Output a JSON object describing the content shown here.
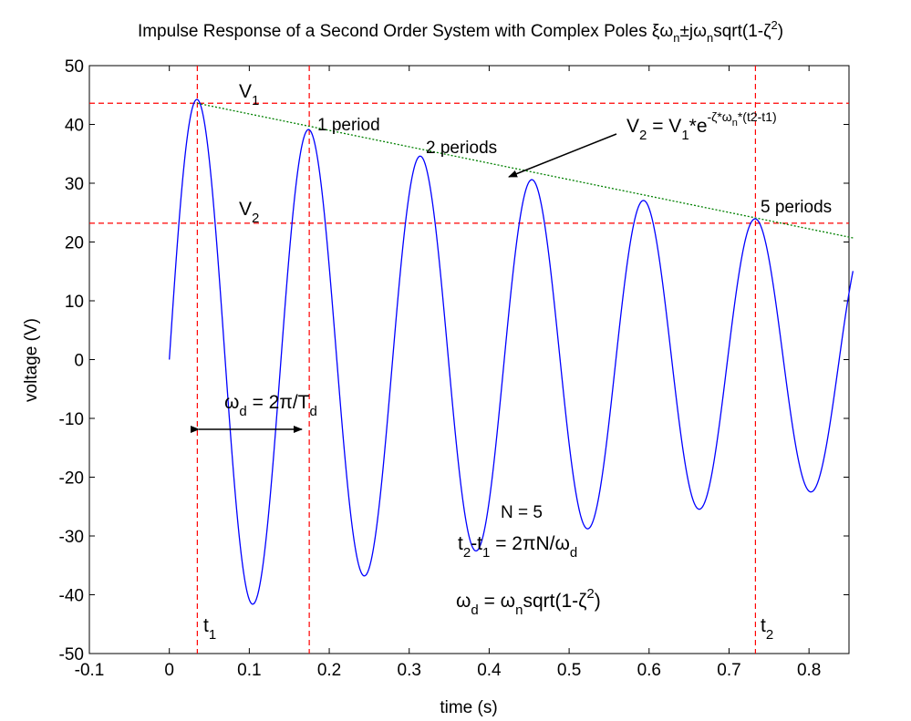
{
  "chart_data": {
    "type": "line",
    "title": {
      "prefix": "Impulse Response of a Second Order System with Complex Poles ",
      "xi": "ξω",
      "n1": "n",
      "pm": "±jω",
      "n2": "n",
      "mid": "sqrt(1-ζ",
      "sup": "2",
      "end": ")"
    },
    "xlabel": "time (s)",
    "ylabel": "voltage (V)",
    "xlim": [
      -0.1,
      0.85
    ],
    "ylim": [
      -50,
      50
    ],
    "xticks": [
      -0.1,
      0,
      0.1,
      0.2,
      0.3,
      0.4,
      0.5,
      0.6,
      0.7,
      0.8
    ],
    "xtick_labels": [
      "-0.1",
      "0",
      "0.1",
      "0.2",
      "0.3",
      "0.4",
      "0.5",
      "0.6",
      "0.7",
      "0.8"
    ],
    "yticks": [
      -50,
      -40,
      -30,
      -20,
      -10,
      0,
      10,
      20,
      30,
      40,
      50
    ],
    "ytick_labels": [
      "-50",
      "-40",
      "-30",
      "-20",
      "-10",
      "0",
      "10",
      "20",
      "30",
      "40",
      "50"
    ],
    "grid": false,
    "series": [
      {
        "color": "#0000ff",
        "model": {
          "amplitude": 45.61,
          "decay": 0.8798,
          "omega_d": 45.0,
          "t_start": 0,
          "t_end": 0.855
        }
      }
    ],
    "envelope": {
      "color": "#008000",
      "style": "dotted",
      "points": [
        [
          0.035,
          43.6
        ],
        [
          0.855,
          20.7
        ]
      ]
    },
    "reference_lines": {
      "color": "#ff0000",
      "style": "dashed",
      "horizontal": [
        43.6,
        23.2
      ],
      "vertical": [
        0.035,
        0.175,
        0.733
      ]
    },
    "annotations": {
      "V1": {
        "main": "V",
        "sub": "1"
      },
      "V2": {
        "main": "V",
        "sub": "2"
      },
      "one_period": "1 period",
      "two_periods": "2 periods",
      "five_periods": "5 periods",
      "formula": {
        "a": "V",
        "b": "2",
        "c": " = V",
        "d": "1",
        "e": "*e",
        "f": "-ζ*ω",
        "g": "n",
        "h": "*(t2-t1)"
      },
      "omega_d": {
        "a": "ω",
        "b": "d",
        "c": " = 2π/T",
        "d": "d"
      },
      "N": "N = 5",
      "t_diff": {
        "a": "t",
        "b": "2",
        "c": "-t",
        "d": "1",
        "e": " = 2πN/ω",
        "f": "d"
      },
      "wd_formula": {
        "a": "ω",
        "b": "d",
        "c": " = ω",
        "d": "n",
        "e": "sqrt(1-ζ",
        "f": "2",
        "g": ")"
      },
      "t1": {
        "main": "t",
        "sub": "1"
      },
      "t2": {
        "main": "t",
        "sub": "2"
      }
    }
  }
}
